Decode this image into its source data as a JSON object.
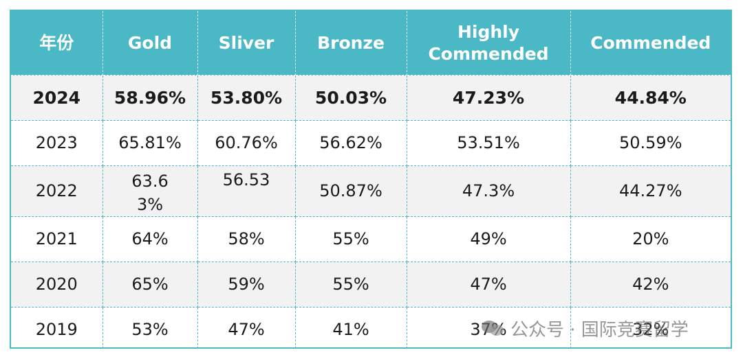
{
  "table": {
    "headers": {
      "year": "年份",
      "gold": "Gold",
      "silver": "Sliver",
      "bronze": "Bronze",
      "highly_line1": "Highly",
      "highly_line2": "Commended",
      "commended": "Commended"
    },
    "rows": [
      [
        "2024",
        "58.96%",
        "53.80%",
        "50.03%",
        "47.23%",
        "44.84%"
      ],
      [
        "2023",
        "65.81%",
        "60.76%",
        "56.62%",
        "53.51%",
        "50.59%"
      ],
      [
        "2022",
        "63.63%",
        "56.53",
        "50.87%",
        "47.3%",
        "44.27%"
      ],
      [
        "2021",
        "64%",
        "58%",
        "55%",
        "49%",
        "20%"
      ],
      [
        "2020",
        "65%",
        "59%",
        "55%",
        "47%",
        "42%"
      ],
      [
        "2019",
        "53%",
        "47%",
        "41%",
        "37%",
        "32%"
      ]
    ]
  },
  "watermark": {
    "icon": "wechat-bubbles-icon",
    "text": "公众号 · 国际竞赛留学"
  },
  "colors": {
    "header_bg": "#4bb8c6",
    "shade_bg": "#f2f2f2",
    "border": "#4bb8c6"
  }
}
